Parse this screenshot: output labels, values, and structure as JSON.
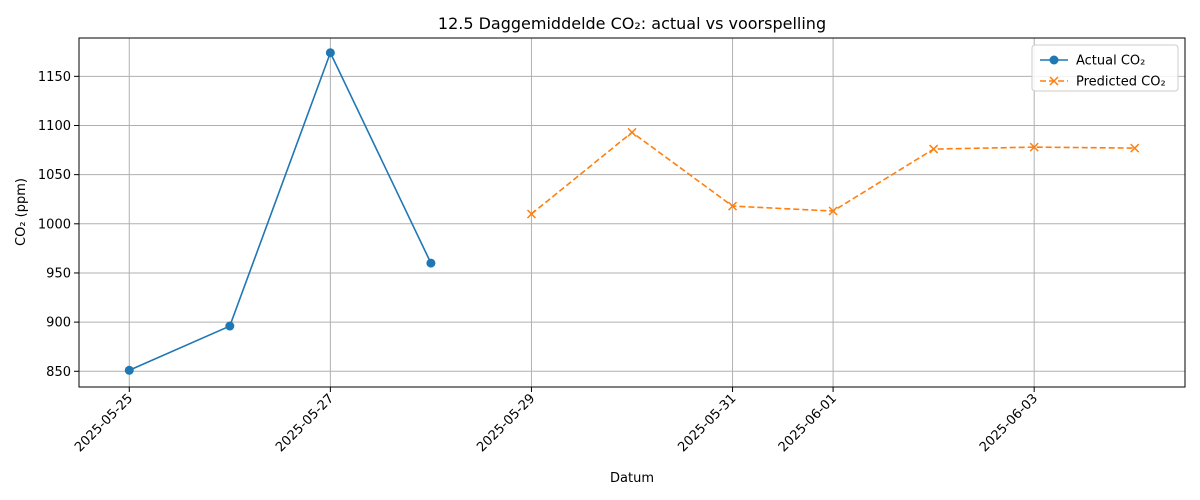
{
  "chart_data": {
    "type": "line",
    "title": "12.5 Daggemiddelde CO₂: actual vs voorspelling",
    "xlabel": "Datum",
    "ylabel": "CO₂ (ppm)",
    "x_ticks": [
      "2025-05-25",
      "2025-05-27",
      "2025-05-29",
      "2025-05-31",
      "2025-06-01",
      "2025-06-03"
    ],
    "y_ticks": [
      850,
      900,
      950,
      1000,
      1050,
      1100,
      1150
    ],
    "ylim": [
      834,
      1189
    ],
    "xlim": [
      "2025-05-24 12:00",
      "2025-06-04 12:00"
    ],
    "grid": true,
    "legend_position": "top-right",
    "series": [
      {
        "name": "Actual CO₂",
        "color": "#1f77b4",
        "line_style": "solid",
        "marker": "circle",
        "x": [
          "2025-05-25",
          "2025-05-26",
          "2025-05-27",
          "2025-05-28"
        ],
        "values": [
          851,
          896,
          1174,
          960
        ]
      },
      {
        "name": "Predicted CO₂",
        "color": "#ff7f0e",
        "line_style": "dashed",
        "marker": "x",
        "x": [
          "2025-05-29",
          "2025-05-30",
          "2025-05-31",
          "2025-06-01",
          "2025-06-02",
          "2025-06-03",
          "2025-06-04"
        ],
        "values": [
          1010,
          1093,
          1018,
          1013,
          1076,
          1078,
          1077
        ]
      }
    ]
  }
}
